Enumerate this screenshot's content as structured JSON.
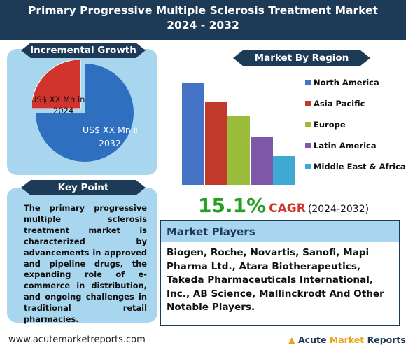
{
  "title": {
    "line1": "Primary Progressive Multiple Sclerosis Treatment Market",
    "line2": "2024 - 2032"
  },
  "incremental_growth": {
    "heading": "Incremental Growth",
    "label_2024": [
      "US$ XX Mn in",
      "2024"
    ],
    "label_2032": [
      "US$ XX Mn in",
      "2032"
    ],
    "colors": {
      "slice_2024": "#d0342c",
      "slice_2032": "#2f6fbf"
    }
  },
  "key_point": {
    "heading": "Key Point",
    "text": "The primary progressive multiple sclerosis treatment market is characterized by advancements in approved and pipeline drugs, the expanding role of e-commerce in distribution, and ongoing challenges in traditional retail pharmacies."
  },
  "market_by_region": {
    "heading": "Market By Region",
    "legend": [
      {
        "label": "North America",
        "color": "#4472c4"
      },
      {
        "label": "Asia Pacific",
        "color": "#c0392b"
      },
      {
        "label": "Europe",
        "color": "#9bbb3b"
      },
      {
        "label": "Latin America",
        "color": "#7e57a8"
      },
      {
        "label": "Middle East & Africa",
        "color": "#3fa9d6"
      }
    ]
  },
  "chart_data": {
    "type": "bar",
    "categories": [
      "North America",
      "Asia Pacific",
      "Europe",
      "Latin America",
      "Middle East & Africa"
    ],
    "values": [
      100,
      81,
      67,
      47,
      28
    ],
    "title": "Market By Region",
    "xlabel": "",
    "ylabel": "",
    "ylim": [
      0,
      100
    ],
    "grid": false,
    "legend": "right"
  },
  "cagr": {
    "value": "15.1%",
    "label": "CAGR",
    "period": "(2024-2032)"
  },
  "market_players": {
    "heading": "Market Players",
    "text": "Biogen, Roche, Novartis, Sanofi, Mapi Pharma Ltd., Atara Biotherapeutics, Takeda Pharmaceuticals International, Inc., AB Science, Mallinckrodt And Other Notable Players."
  },
  "footer": {
    "url": "www.acutemarketreports.com",
    "logo_word1": "Acute",
    "logo_word2": "Market",
    "logo_word3": "Reports"
  }
}
